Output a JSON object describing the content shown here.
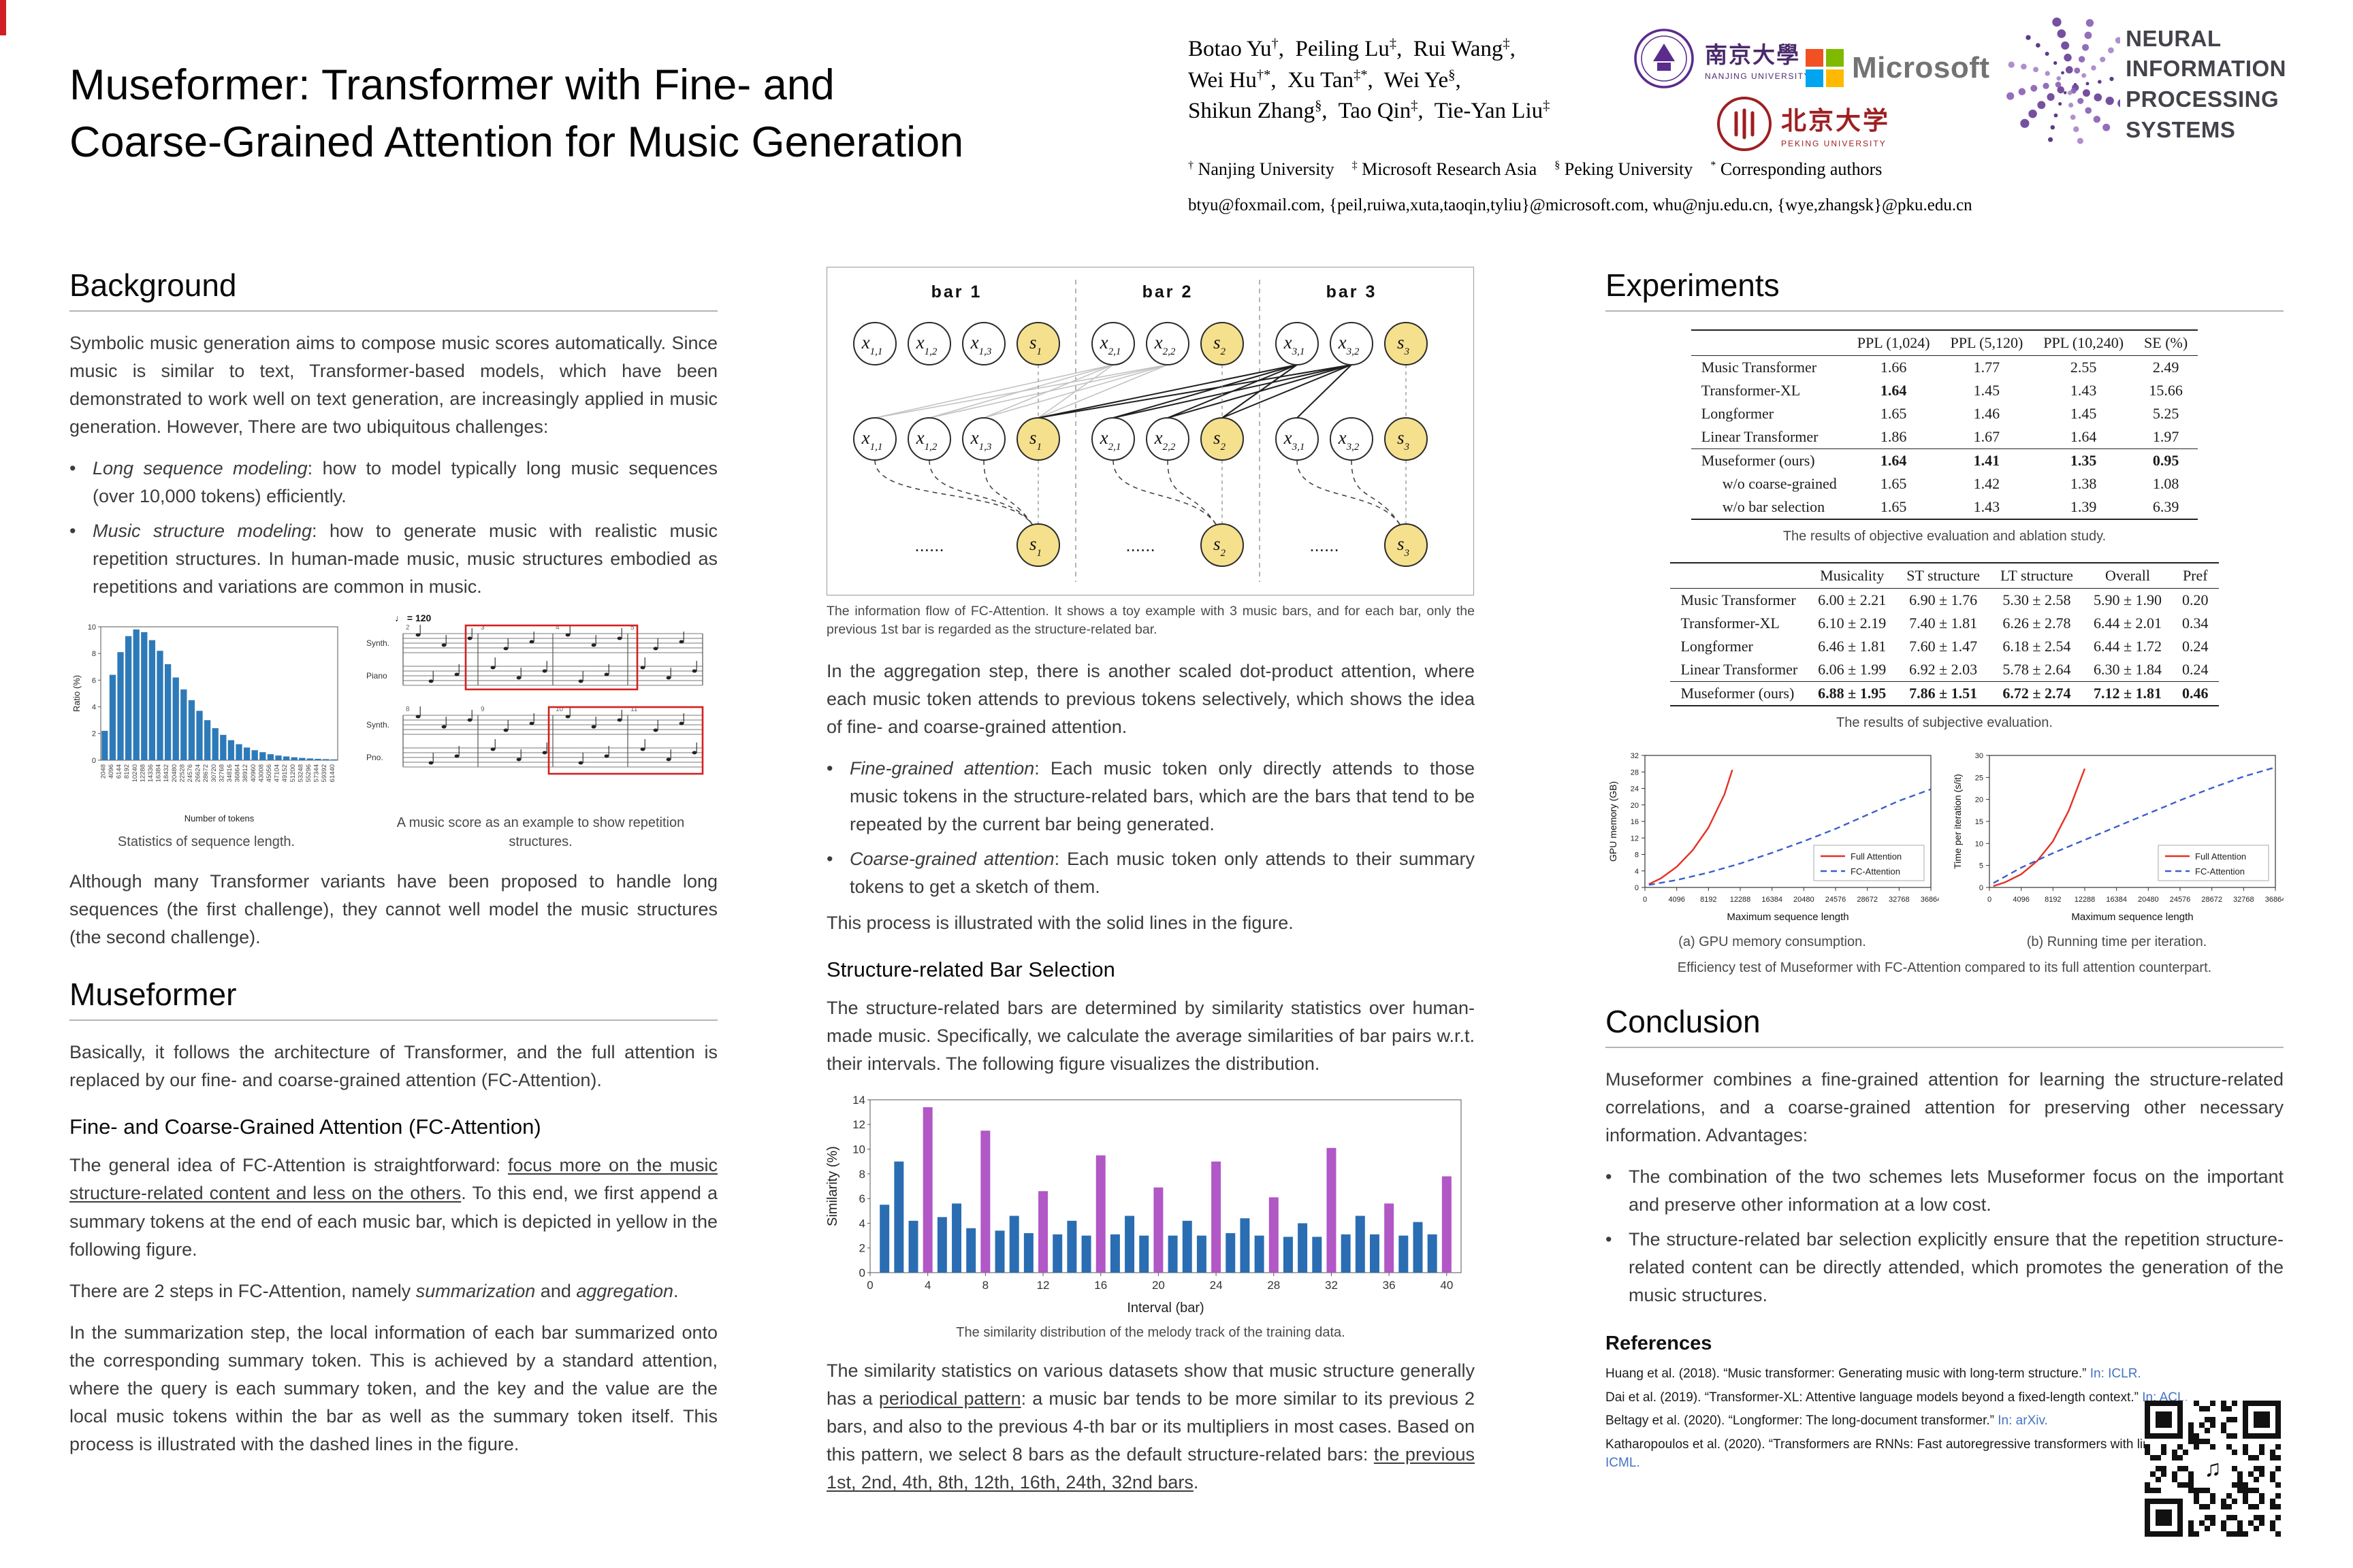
{
  "colors": {
    "accent_red": "#cf1f25",
    "summary_yellow": "#f5e08e",
    "link_blue": "#4472c4"
  },
  "header": {
    "title_line1": "Museformer: Transformer with Fine- and",
    "title_line2": "Coarse-Grained Attention for Music Generation",
    "authors_html": "Botao Yu<sup>†</sup>,&nbsp; Peiling Lu<sup>‡</sup>,&nbsp; Rui Wang<sup>‡</sup>,<br>Wei Hu<sup>†*</sup>,&nbsp; Xu Tan<sup>‡*</sup>,&nbsp; Wei Ye<sup>§</sup>,<br>Shikun Zhang<sup>§</sup>,&nbsp; Tao Qin<sup>‡</sup>,&nbsp; Tie-Yan Liu<sup>‡</sup>",
    "affiliations_html": "<sup>†</sup> Nanjing University &nbsp;&nbsp; <sup>‡</sup> Microsoft Research Asia &nbsp;&nbsp; <sup>§</sup> Peking University &nbsp;&nbsp; <sup>*</sup> Corresponding authors",
    "emails": "btyu@foxmail.com, {peil,ruiwa,xuta,taoqin,tyliu}@microsoft.com, whu@nju.edu.cn, {wye,zhangsk}@pku.edu.cn",
    "logos": {
      "nanjing_cn": "南京大學",
      "nanjing_en": "NANJING UNIVERSITY",
      "microsoft": "Microsoft",
      "peking_cn": "北京大学",
      "peking_en": "PEKING UNIVERSITY",
      "neurips_line1": "NEURAL INFORMATION",
      "neurips_line2": "PROCESSING SYSTEMS"
    }
  },
  "background": {
    "heading": "Background",
    "p1": "Symbolic music generation aims to compose music scores automatically. Since music is similar to text, Transformer-based models, which have been demonstrated to work well on text generation, are increasingly applied in music generation. However, There are two ubiquitous challenges:",
    "bullets": [
      "<span class='ital'>Long sequence modeling</span>: how to model typically long music sequences (over 10,000 tokens) efficiently.",
      "<span class='ital'>Music structure modeling</span>: how to generate music with realistic music repetition structures. In human-made music, music structures embodied as repetitions and variations are common in music."
    ],
    "fig1_caption": "Statistics of sequence length.",
    "fig2_caption": "A music score as an example to show repetition structures.",
    "score_tempo": "♩ = 120",
    "p2": "Although many Transformer variants have been proposed to handle long sequences (the first challenge), they cannot well model the music structures (the second challenge)."
  },
  "museformer": {
    "heading": "Museformer",
    "p1": "Basically, it follows the architecture of Transformer, and the full attention is replaced by our fine- and coarse-grained attention (FC-Attention).",
    "sub_heading": "Fine- and Coarse-Grained Attention (FC-Attention)",
    "p2_html": "The general idea of FC-Attention is straightforward: <span class='u'>focus more on the music structure-related content and less on the others</span>. To this end, we first append a summary tokens at the end of each music bar, which is depicted in yellow in the following figure.",
    "p3_html": "There are 2 steps in FC-Attention, namely <i>summarization</i> and <i>aggregation</i>.",
    "p4": "In the summarization step, the local information of each bar summarized onto the corresponding summary token. This is achieved by a standard attention, where the query is each summary token, and the key and the value are the local music tokens within the bar as well as the summary token itself. This process is illustrated with the dashed lines in the figure."
  },
  "fc_figure": {
    "bar_labels": [
      "bar 1",
      "bar 2",
      "bar 3"
    ],
    "token_base": "x",
    "summary_base": "s",
    "bars": [
      {
        "tokens": [
          "1,1",
          "1,2",
          "1,3"
        ],
        "summary": "1"
      },
      {
        "tokens": [
          "2,1",
          "2,2"
        ],
        "summary": "2"
      },
      {
        "tokens": [
          "3,1",
          "3,2"
        ],
        "summary": "3"
      }
    ],
    "ellipsis": "......",
    "summary_color": "#f5e08e",
    "caption": "The information flow of FC-Attention. It shows a toy example with 3 music bars, and for each bar, only the previous 1st bar is regarded as the structure-related bar."
  },
  "middle": {
    "p1": "In the aggregation step, there is another scaled dot-product attention, where each music token attends to previous tokens selectively, which shows the idea of fine- and coarse-grained attention.",
    "bullets": [
      "<span class='ital'>Fine-grained attention</span>: Each music token only directly attends to those music tokens in the structure-related bars, which are the bars that tend to be repeated by the current bar being generated.",
      "<span class='ital'>Coarse-grained attention</span>: Each music token only attends to their summary tokens to get a sketch of them."
    ],
    "p2": "This process is illustrated with the solid lines in the figure.",
    "sub_heading": "Structure-related Bar Selection",
    "p3": "The structure-related bars are determined by similarity statistics over human-made music. Specifically, we calculate the average similarities of bar pairs w.r.t. their intervals. The following figure visualizes the distribution.",
    "fig_caption": "The similarity distribution of the melody track of the training data.",
    "p4_html": "The similarity statistics on various datasets show that music structure generally has a <span class='u'>periodical pattern</span>: a music bar tends to be more similar to its previous 2 bars, and also to the previous 4-th bar or its multipliers in most cases. Based on this pattern, we select 8 bars as the default structure-related bars: <span class='u'>the previous 1st, 2nd, 4th, 8th, 12th, 16th, 24th, 32nd bars</span>."
  },
  "experiments": {
    "heading": "Experiments",
    "table1": {
      "headers": [
        "",
        "PPL (1,024)",
        "PPL (5,120)",
        "PPL (10,240)",
        "SE (%)"
      ],
      "rows": [
        {
          "label": "Music Transformer",
          "values": [
            "1.66",
            "1.77",
            "2.55",
            "2.49"
          ]
        },
        {
          "label": "Transformer-XL",
          "values": [
            "1.64",
            "1.45",
            "1.43",
            "15.66"
          ],
          "bold_idx": [
            0
          ]
        },
        {
          "label": "Longformer",
          "values": [
            "1.65",
            "1.46",
            "1.45",
            "5.25"
          ]
        },
        {
          "label": "Linear Transformer",
          "values": [
            "1.86",
            "1.67",
            "1.64",
            "1.97"
          ]
        },
        {
          "label": "Museformer (ours)",
          "values": [
            "1.64",
            "1.41",
            "1.35",
            "0.95"
          ],
          "bold_all": true,
          "rule_above": true
        },
        {
          "label": "w/o coarse-grained",
          "values": [
            "1.65",
            "1.42",
            "1.38",
            "1.08"
          ],
          "indent": true
        },
        {
          "label": "w/o bar selection",
          "values": [
            "1.65",
            "1.43",
            "1.39",
            "6.39"
          ],
          "indent": true
        }
      ]
    },
    "table1_caption": "The results of objective evaluation and ablation study.",
    "table2": {
      "headers": [
        "",
        "Musicality",
        "ST structure",
        "LT structure",
        "Overall",
        "Pref"
      ],
      "rows": [
        {
          "label": "Music Transformer",
          "values": [
            "6.00 ± 2.21",
            "6.90 ± 1.76",
            "5.30 ± 2.58",
            "5.90 ± 1.90",
            "0.20"
          ]
        },
        {
          "label": "Transformer-XL",
          "values": [
            "6.10 ± 2.19",
            "7.40 ± 1.81",
            "6.26 ± 2.78",
            "6.44 ± 2.01",
            "0.34"
          ]
        },
        {
          "label": "Longformer",
          "values": [
            "6.46 ± 1.81",
            "7.60 ± 1.47",
            "6.18 ± 2.54",
            "6.44 ± 1.72",
            "0.24"
          ]
        },
        {
          "label": "Linear Transformer",
          "values": [
            "6.06 ± 1.99",
            "6.92 ± 2.03",
            "5.78 ± 2.64",
            "6.30 ± 1.84",
            "0.24"
          ]
        },
        {
          "label": "Museformer (ours)",
          "values": [
            "6.88 ± 1.95",
            "7.86 ± 1.51",
            "6.72 ± 2.74",
            "7.12 ± 1.81",
            "0.46"
          ],
          "bold_all": true,
          "rule_above": true
        }
      ]
    },
    "table2_caption": "The results of subjective evaluation.",
    "fig_a_caption": "(a) GPU memory consumption.",
    "fig_b_caption": "(b) Running time per iteration.",
    "efficiency_caption": "Efficiency test of Museformer with FC-Attention compared to its full attention counterpart."
  },
  "conclusion": {
    "heading": "Conclusion",
    "p1": "Museformer combines a fine-grained attention for learning the structure-related correlations, and a coarse-grained attention for preserving other necessary information. Advantages:",
    "bullets": [
      "The combination of the two schemes lets Museformer focus on the important and preserve other information at a low cost.",
      "The structure-related bar selection explicitly ensure that the repetition structure-related content can be directly attended, which promotes the generation of the music structures."
    ]
  },
  "references": {
    "heading": "References",
    "items": [
      {
        "text": "Huang et al. (2018). “Music transformer: Generating music with long-term structure.”",
        "venue": "In: ICLR."
      },
      {
        "text": "Dai et al. (2019). “Transformer-XL: Attentive language models beyond a fixed-length context.”",
        "venue": "In: ACL."
      },
      {
        "text": "Beltagy et al. (2020). “Longformer: The long-document transformer.”",
        "venue": "In: arXiv."
      },
      {
        "text": "Katharopoulos et al. (2020). “Transformers are RNNs: Fast autoregressive transformers with linear attention.”",
        "venue": "In: ICML."
      }
    ]
  },
  "chart_data": [
    {
      "id": "sequence-length-histogram",
      "type": "bar",
      "title": "Statistics of sequence length",
      "xlabel": "Number of tokens",
      "ylabel": "Ratio (%)",
      "ylim": [
        0,
        10
      ],
      "yticks": [
        0,
        2,
        4,
        6,
        8,
        10
      ],
      "categories": [
        "2048",
        "4096",
        "6144",
        "8192",
        "10240",
        "12288",
        "14336",
        "16384",
        "18432",
        "20480",
        "22528",
        "24576",
        "26624",
        "28672",
        "30720",
        "32768",
        "34816",
        "36864",
        "38912",
        "40960",
        "43008",
        "45056",
        "47104",
        "49152",
        "51200",
        "53248",
        "55296",
        "57344",
        "59392",
        "61440"
      ],
      "values": [
        2.2,
        6.4,
        8.1,
        9.3,
        9.8,
        9.6,
        9.0,
        8.2,
        7.2,
        6.2,
        5.3,
        4.5,
        3.7,
        3.0,
        2.4,
        1.9,
        1.5,
        1.2,
        0.95,
        0.75,
        0.6,
        0.45,
        0.35,
        0.28,
        0.22,
        0.17,
        0.13,
        0.1,
        0.08,
        0.06
      ],
      "bar_color": "#2e7ab8",
      "grid": false
    },
    {
      "id": "bar-similarity-distribution",
      "type": "bar",
      "title": "The similarity distribution of the melody track of the training data",
      "xlabel": "Interval (bar)",
      "ylabel": "Similarity (%)",
      "ylim": [
        0,
        14
      ],
      "yticks": [
        0,
        2,
        4,
        6,
        8,
        10,
        12,
        14
      ],
      "xticks": [
        0,
        4,
        8,
        12,
        16,
        20,
        24,
        28,
        32,
        36,
        40
      ],
      "xmax": 41,
      "x_start": 1,
      "values": [
        5.5,
        9.0,
        4.2,
        13.4,
        4.5,
        5.6,
        3.6,
        11.5,
        3.4,
        4.6,
        3.2,
        6.6,
        3.1,
        4.2,
        3.0,
        9.5,
        3.1,
        4.6,
        3.0,
        6.9,
        3.0,
        4.2,
        3.0,
        9.0,
        3.2,
        4.4,
        3.0,
        6.1,
        2.9,
        4.0,
        2.9,
        10.1,
        3.1,
        4.6,
        3.1,
        5.6,
        3.0,
        4.1,
        3.1,
        7.8
      ],
      "highlight_every": 4,
      "color_default": "#2a6db2",
      "color_highlight": "#b157c6",
      "grid": false
    },
    {
      "id": "line-gpu-memory",
      "type": "line",
      "title": "(a) GPU memory consumption",
      "xlabel": "Maximum sequence length",
      "ylabel": "GPU memory (GB)",
      "xlim": [
        0,
        36864
      ],
      "ylim": [
        0,
        32
      ],
      "xticks": [
        0,
        4096,
        8192,
        12288,
        16384,
        20480,
        24576,
        28672,
        32768,
        36864
      ],
      "yticks": [
        0,
        4,
        8,
        12,
        16,
        20,
        24,
        28,
        32
      ],
      "legend_position": "bottom-right",
      "series": [
        {
          "name": "Full Attention",
          "color": "#e53125",
          "dash": false,
          "x": [
            512,
            2048,
            4096,
            6144,
            8192,
            10240,
            11264
          ],
          "y": [
            0.8,
            2.2,
            5.0,
            9.0,
            14.5,
            22.5,
            28.5
          ]
        },
        {
          "name": "FC-Attention",
          "color": "#3a5fcd",
          "dash": true,
          "x": [
            512,
            4096,
            8192,
            12288,
            16384,
            20480,
            24576,
            28672,
            32768,
            36864
          ],
          "y": [
            0.6,
            1.8,
            3.6,
            5.8,
            8.4,
            11.2,
            14.2,
            17.6,
            21.0,
            23.8
          ]
        }
      ]
    },
    {
      "id": "line-running-time",
      "type": "line",
      "title": "(b) Running time per iteration",
      "xlabel": "Maximum sequence length",
      "ylabel": "Time per iteration (s/it)",
      "xlim": [
        0,
        36864
      ],
      "ylim": [
        0,
        30
      ],
      "xticks": [
        0,
        4096,
        8192,
        12288,
        16384,
        20480,
        24576,
        28672,
        32768,
        36864
      ],
      "yticks": [
        0,
        5,
        10,
        15,
        20,
        25,
        30
      ],
      "legend_position": "bottom-right",
      "series": [
        {
          "name": "Full Attention",
          "color": "#e53125",
          "dash": false,
          "x": [
            512,
            2048,
            4096,
            6144,
            8192,
            10240,
            12288
          ],
          "y": [
            0.3,
            1.2,
            3.0,
            6.0,
            10.5,
            17.5,
            27.0
          ]
        },
        {
          "name": "FC-Attention",
          "color": "#3a5fcd",
          "dash": true,
          "x": [
            512,
            4096,
            8192,
            12288,
            16384,
            20480,
            24576,
            28672,
            32768,
            36864
          ],
          "y": [
            1.0,
            4.5,
            7.8,
            10.8,
            13.8,
            16.8,
            19.8,
            22.6,
            25.2,
            27.3
          ]
        }
      ]
    }
  ]
}
